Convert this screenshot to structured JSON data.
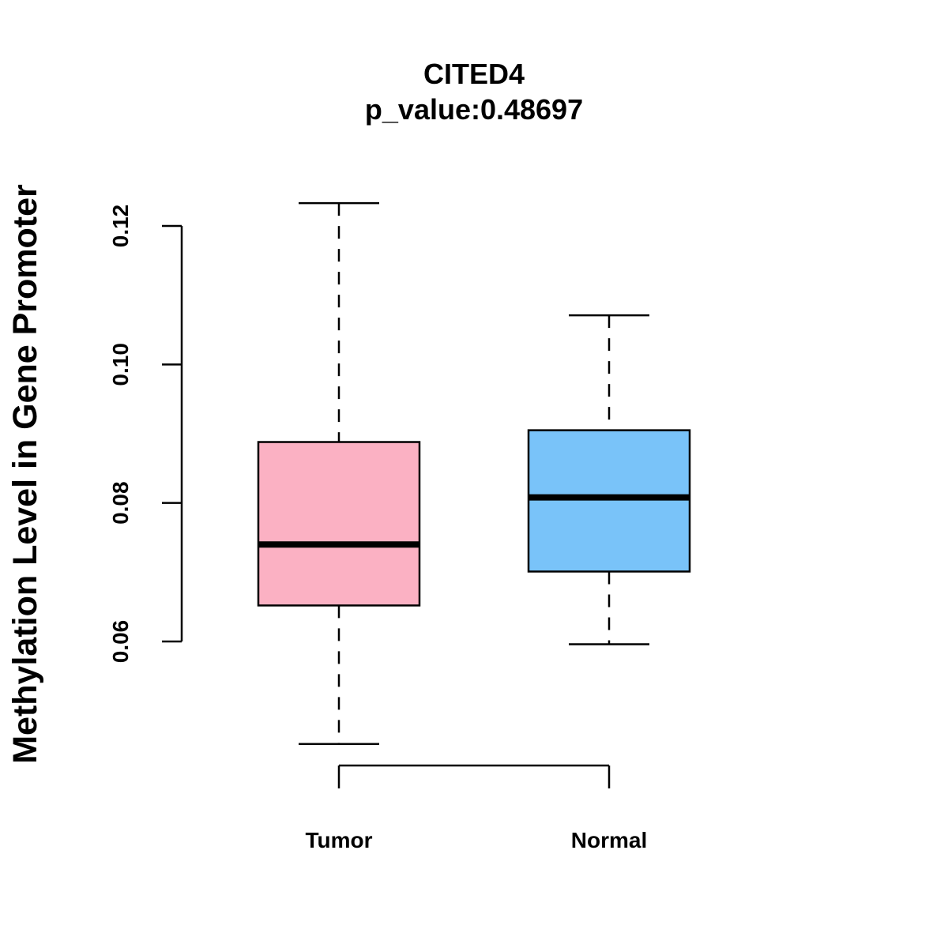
{
  "chart_data": {
    "type": "boxplot",
    "title": "CITED4",
    "subtitle": "p_value:0.48697",
    "xlabel": "",
    "ylabel": "Methylation Level in Gene Promoter",
    "ylim": [
      0.06,
      0.12
    ],
    "y_ticks": [
      0.06,
      0.08,
      0.1,
      0.12
    ],
    "y_tick_labels": [
      "0.06",
      "0.08",
      "0.10",
      "0.12"
    ],
    "grid": false,
    "categories": [
      "Tumor",
      "Normal"
    ],
    "series": [
      {
        "name": "Tumor",
        "color": "#FBB1C3",
        "whisker_low": 0.0452,
        "q1": 0.0652,
        "median": 0.074,
        "q3": 0.0888,
        "whisker_high": 0.1233
      },
      {
        "name": "Normal",
        "color": "#79C3F9",
        "whisker_low": 0.0596,
        "q1": 0.0701,
        "median": 0.0808,
        "q3": 0.0905,
        "whisker_high": 0.1071
      }
    ]
  }
}
